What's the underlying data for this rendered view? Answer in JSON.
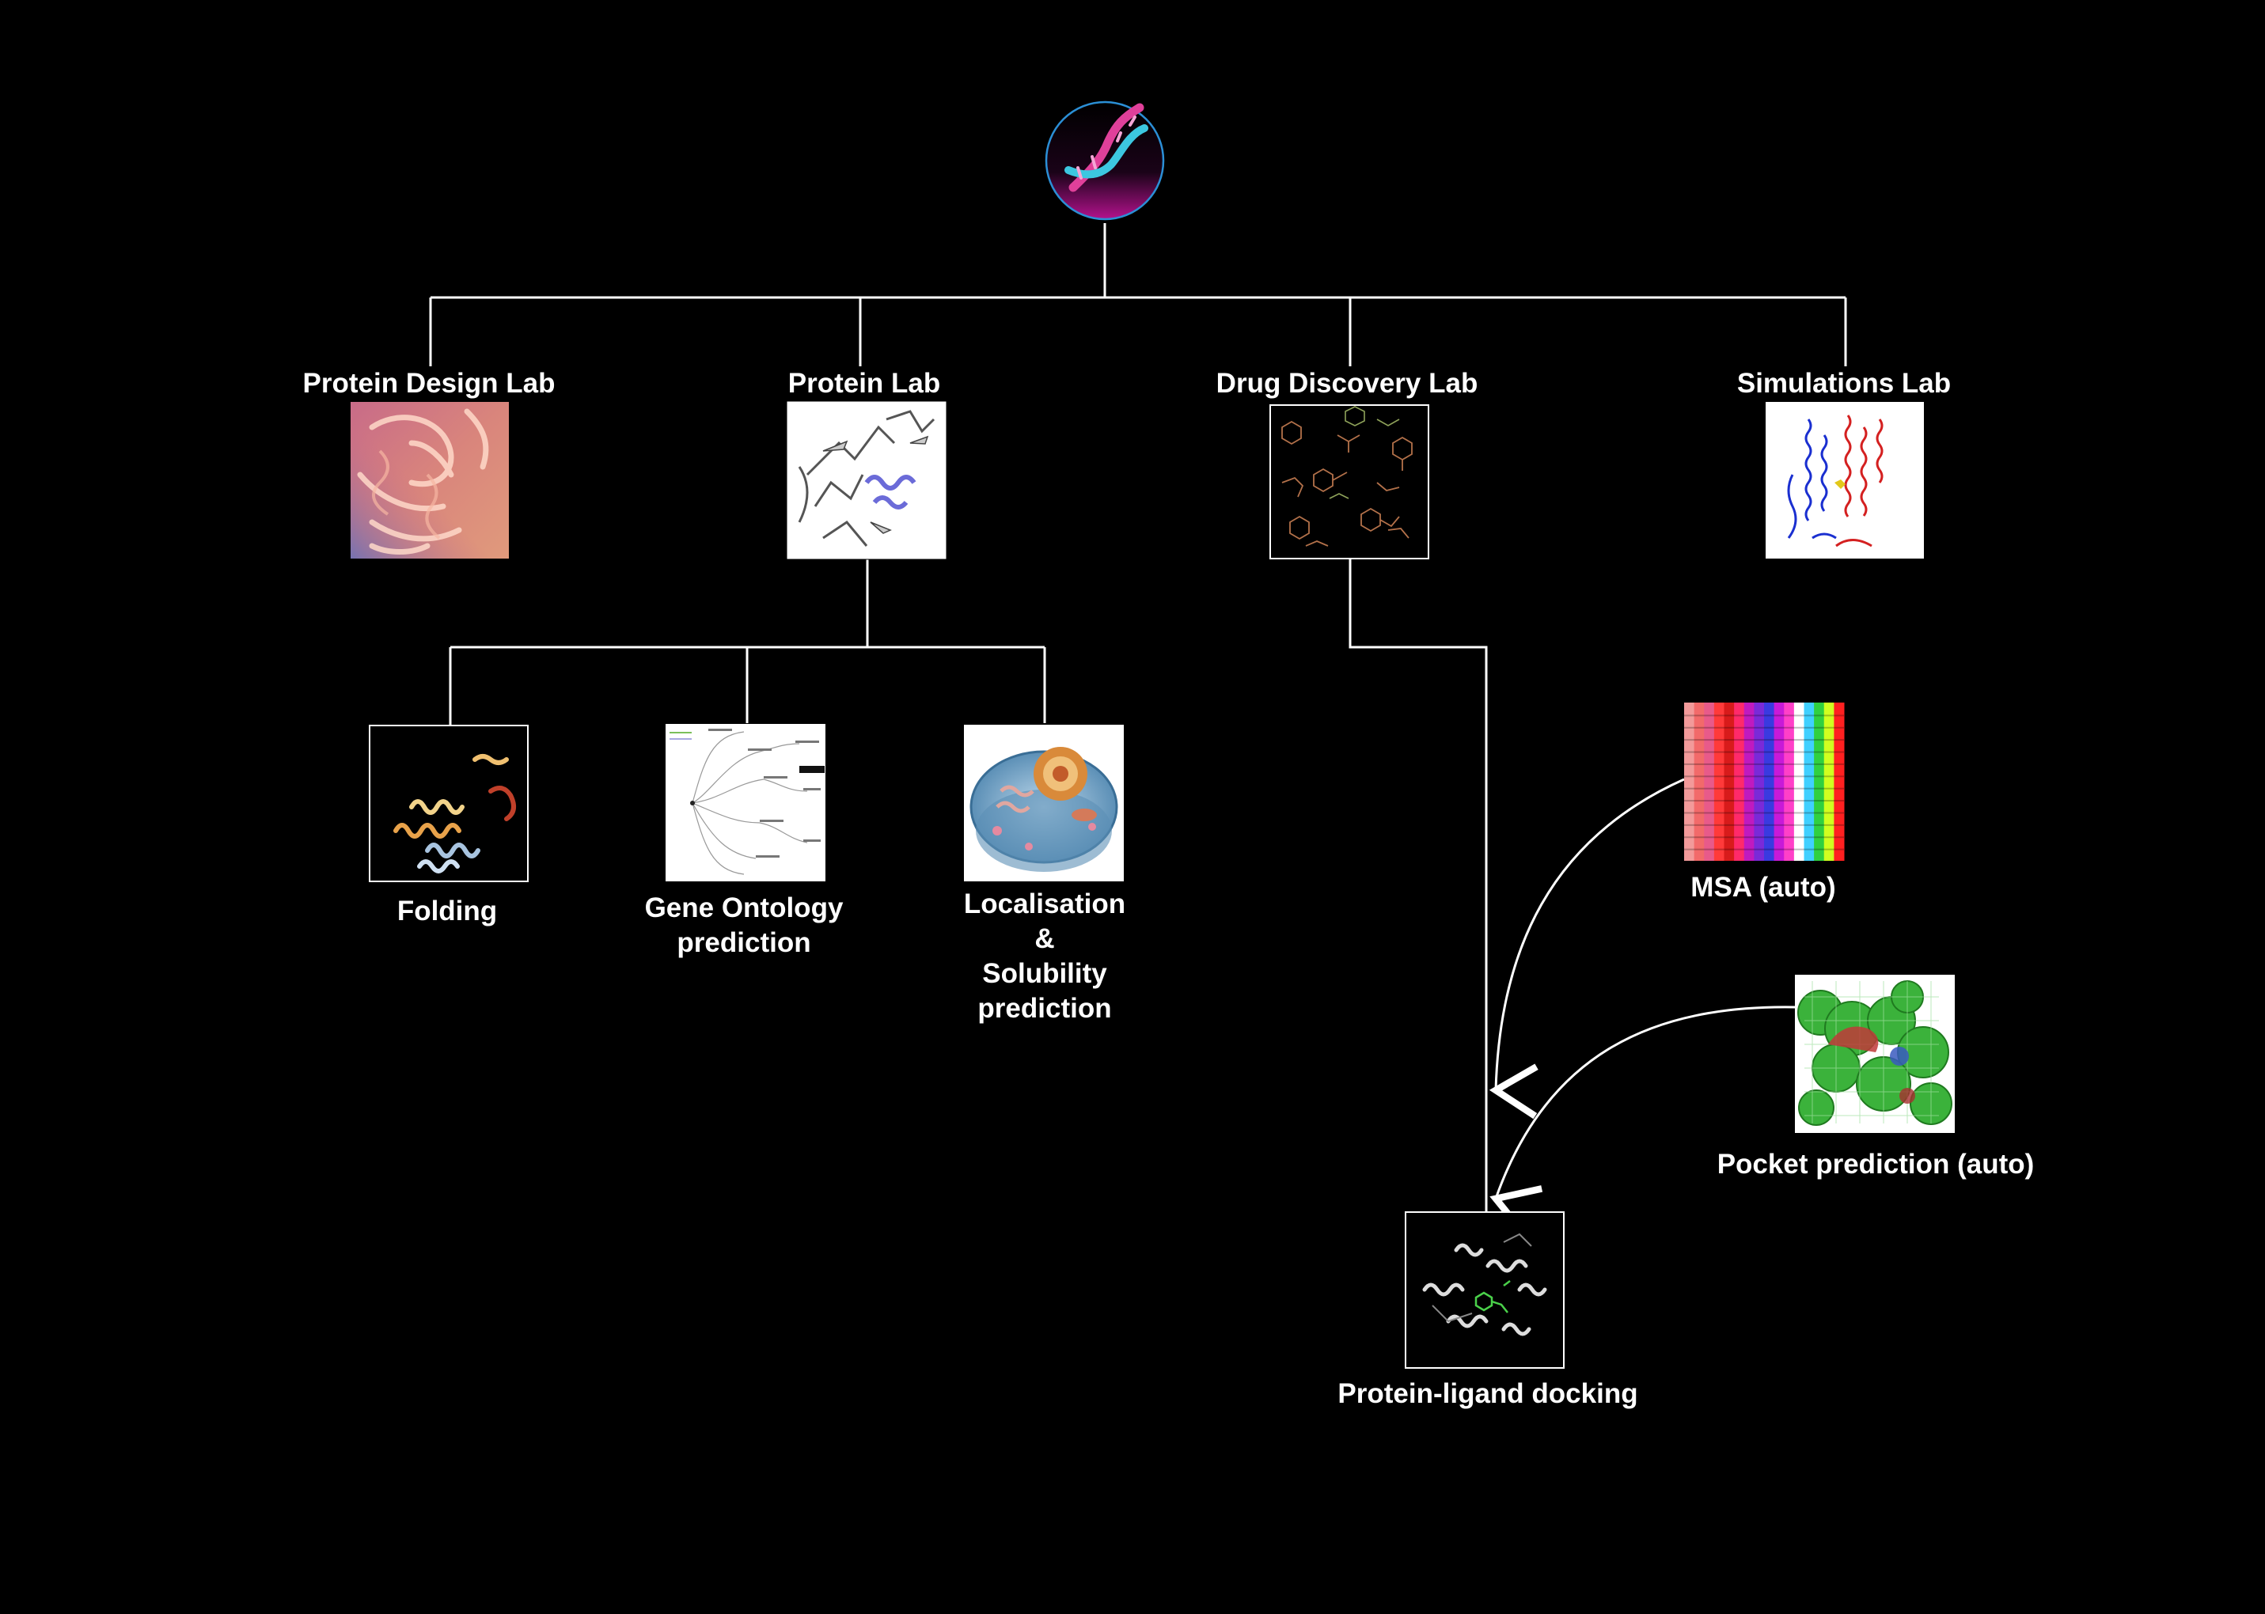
{
  "nodes": {
    "protein_design_lab": {
      "label": "Protein Design Lab"
    },
    "protein_lab": {
      "label": "Protein Lab"
    },
    "drug_discovery_lab": {
      "label": "Drug Discovery Lab"
    },
    "simulations_lab": {
      "label": "Simulations Lab"
    },
    "folding": {
      "label": "Folding"
    },
    "gene_ontology": {
      "label_lines": [
        "Gene Ontology",
        "prediction"
      ]
    },
    "localisation": {
      "label_lines": [
        "Localisation",
        "&",
        "Solubility",
        "prediction"
      ]
    },
    "msa": {
      "label": "MSA (auto)"
    },
    "pocket_prediction": {
      "label": "Pocket prediction (auto)"
    },
    "docking": {
      "label": "Protein-ligand docking"
    }
  },
  "icons": {
    "root": "dna-helix-icon"
  },
  "colors": {
    "background": "#000000",
    "lines": "#ffffff",
    "root_ring": "#2b8fd6",
    "dna_pink": "#e0409a",
    "dna_cyan": "#3cc7e0",
    "root_fill_bottom": "#b3128d"
  }
}
